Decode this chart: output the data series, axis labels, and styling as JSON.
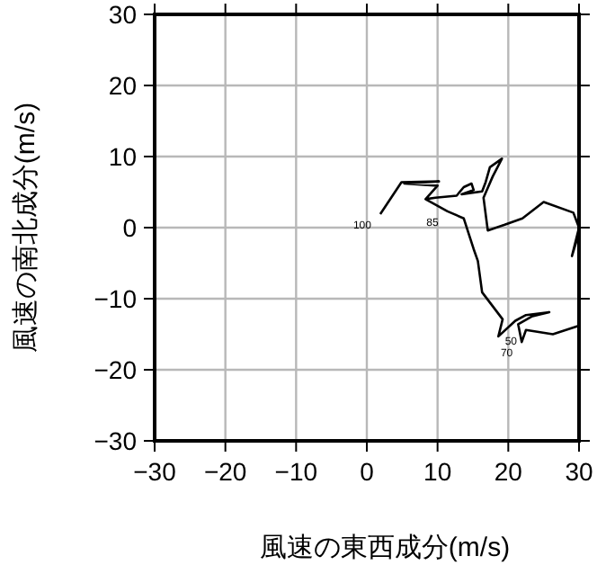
{
  "chart_data": {
    "type": "line",
    "xlabel": "風速の東西成分(m/s)",
    "ylabel": "風速の南北成分(m/s)",
    "xlim": [
      -30,
      30
    ],
    "ylim": [
      -30,
      30
    ],
    "xticks": [
      -30,
      -20,
      -10,
      0,
      10,
      20,
      30
    ],
    "yticks": [
      -30,
      -20,
      -10,
      0,
      10,
      20,
      30
    ],
    "grid": true,
    "marker": "none",
    "line_style": "solid",
    "series": [
      {
        "color": "#000000",
        "x": [
          1.9,
          4.9,
          10.2,
          5.3,
          10.0,
          8.3,
          9.7,
          12.7,
          13.7,
          14.8,
          15.1,
          13.4,
          16.3,
          16.8,
          17.4,
          19.1,
          17.8,
          16.5,
          17.1,
          19.5,
          22.0,
          25.0,
          29.2,
          30.0,
          29.0,
          29.7,
          null,
          8.3,
          11.4,
          13.7,
          15.1,
          15.7,
          16.3,
          19.2,
          18.6,
          21.0,
          22.5,
          25.8,
          23.3,
          21.4,
          21.9,
          22.5,
          26.3,
          30.0
        ],
        "values": [
          1.9,
          6.4,
          6.5,
          6.2,
          5.9,
          4.0,
          4.2,
          4.5,
          5.7,
          6.2,
          5.3,
          4.7,
          5.1,
          6.4,
          8.5,
          9.7,
          7.2,
          4.2,
          -0.4,
          0.4,
          1.3,
          3.6,
          2.1,
          0,
          -4.0,
          -1.7,
          null,
          4.0,
          2.3,
          1.3,
          -3.0,
          -4.7,
          -9.1,
          -12.9,
          -15.3,
          -13.1,
          -12.3,
          -11.9,
          -12.5,
          -13.6,
          -16.1,
          -14.4,
          -15.0,
          -13.8
        ]
      }
    ],
    "annotations": [
      {
        "text": "100",
        "x": 1.9,
        "y": 1.9
      },
      {
        "text": "85",
        "x": 11.4,
        "y": 2.3
      },
      {
        "text": "70",
        "x": 21.9,
        "y": -16.1
      },
      {
        "text": "50",
        "x": 22.5,
        "y": -14.4
      }
    ]
  }
}
